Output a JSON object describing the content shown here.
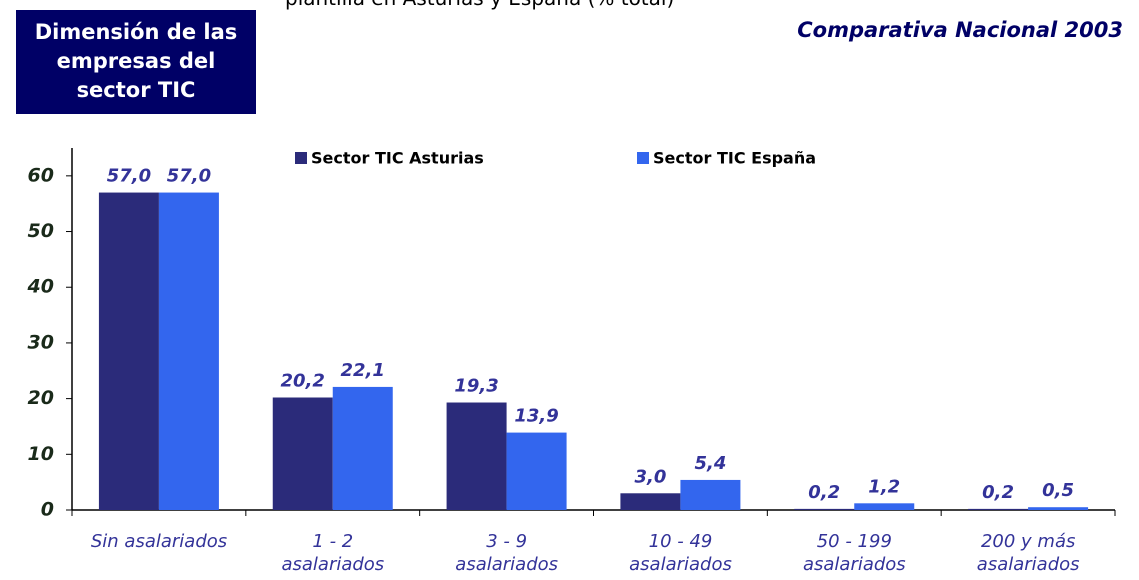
{
  "chart_data": {
    "type": "bar",
    "title": "Dimensión de las empresas del sector TIC",
    "subtitle": "plantilla en Asturias y España (% total)",
    "annotation": "Comparativa Nacional 2003",
    "categories": [
      "Sin asalariados",
      "1 - 2\nasalariados",
      "3 - 9\nasalariados",
      "10 - 49\nasalariados",
      "50 - 199\nasalariados",
      "200 y más\nasalariados"
    ],
    "series": [
      {
        "name": "Sector TIC Asturias",
        "color": "#2b2b7a",
        "values": [
          57.0,
          20.2,
          19.3,
          3.0,
          0.2,
          0.2
        ],
        "value_labels": [
          "57,0",
          "20,2",
          "19,3",
          "3,0",
          "0,2",
          "0,2"
        ]
      },
      {
        "name": "Sector TIC España",
        "color": "#3366ee",
        "values": [
          57.0,
          22.1,
          13.9,
          5.4,
          1.2,
          0.5
        ],
        "value_labels": [
          "57,0",
          "22,1",
          "13,9",
          "5,4",
          "1,2",
          "0,5"
        ]
      }
    ],
    "ylim": [
      0,
      65
    ],
    "yticks": [
      0,
      10,
      20,
      30,
      40,
      50,
      60
    ],
    "grid": false
  }
}
